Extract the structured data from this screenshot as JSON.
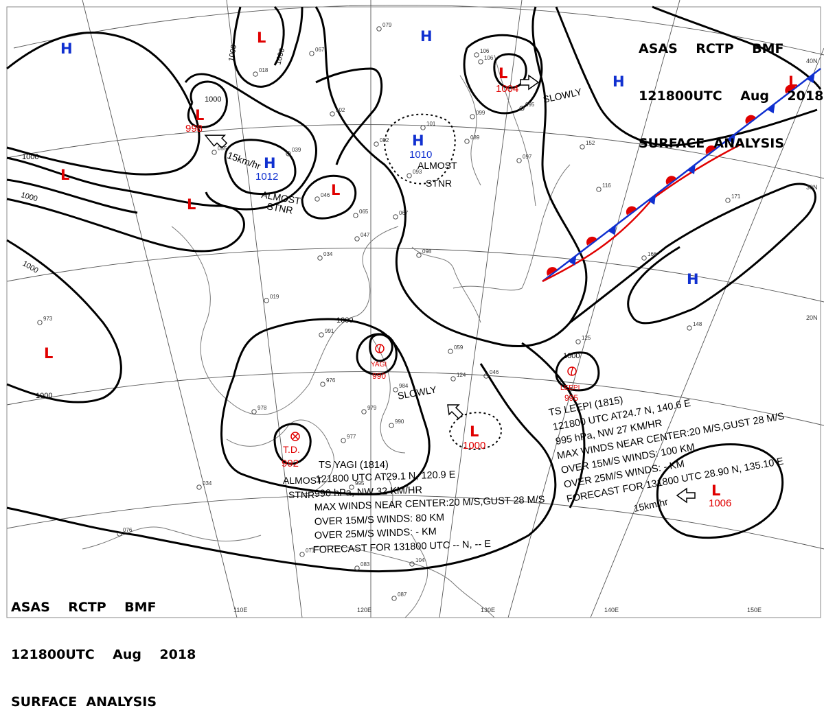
{
  "header": {
    "line1": "ASAS    RCTP    BMF",
    "line2": "121800UTC    Aug    2018",
    "line3": "SURFACE  ANALYSIS"
  },
  "colors": {
    "high": "#1030d0",
    "low": "#e00000",
    "isobar": "#000000",
    "coast": "#777777"
  },
  "longitude_labels": [
    "110E",
    "120E",
    "130E",
    "140E",
    "150E"
  ],
  "latitude_labels": [
    "40N",
    "30N",
    "20N"
  ],
  "isobar_labels": [
    "1000",
    "1000",
    "1000",
    "1000",
    "1000",
    "1000",
    "1000",
    "1000",
    "1000"
  ],
  "pressure_systems": [
    {
      "type": "L",
      "value": ""
    },
    {
      "type": "H",
      "value": ""
    },
    {
      "type": "L",
      "value": "998"
    },
    {
      "type": "H",
      "value": "1012"
    },
    {
      "type": "L",
      "value": ""
    },
    {
      "type": "L",
      "value": ""
    },
    {
      "type": "L",
      "value": ""
    },
    {
      "type": "H",
      "value": ""
    },
    {
      "type": "H",
      "value": "1010"
    },
    {
      "type": "L",
      "value": "1004"
    },
    {
      "type": "H",
      "value": ""
    },
    {
      "type": "L",
      "value": ""
    },
    {
      "type": "H",
      "value": ""
    },
    {
      "type": "L",
      "value": ""
    },
    {
      "type": "L",
      "value": "1000"
    },
    {
      "type": "L",
      "value": "1006"
    }
  ],
  "movement_labels": {
    "slowly_north": "SLOWLY",
    "speed_west": "15km/hr",
    "almost_stnr_west": [
      "ALMOST",
      "STNR"
    ],
    "almost_stnr_center": [
      "ALMOST",
      "STNR"
    ],
    "slowly_south": "SLOWLY",
    "almost_stnr_south": [
      "ALMOST",
      "STNR"
    ],
    "speed_east": "15km/hr"
  },
  "storms": [
    {
      "symbol_name": "YAGI",
      "pressure": "990"
    },
    {
      "symbol_name": "LEEPI",
      "pressure": "995"
    },
    {
      "symbol_name": "T.D.",
      "pressure": "992"
    }
  ],
  "ts_yagi": {
    "lines": [
      "TS  YAGI  (1814)",
      "121800 UTC  AT29.1 N, 120.9 E",
      "990 hPa, NW  32 KM/HR",
      "MAX WINDS NEAR CENTER:20 M/S,GUST 28 M/S",
      "OVER 15M/S WINDS: 80 KM",
      "OVER 25M/S WINDS: - KM",
      "FORECAST FOR 131800 UTC -- N, -- E"
    ]
  },
  "ts_leepi": {
    "lines": [
      "TS  LEEPI  (1815)",
      "121800 UTC  AT24.7 N, 140.6 E",
      "995 hPa, NW  27 KM/HR",
      "MAX WINDS NEAR CENTER:20 M/S,GUST 28 M/S",
      "OVER 15M/S WINDS: 100 KM",
      "OVER 25M/S WINDS: - KM",
      "FORECAST FOR 131800 UTC 28.90 N, 135.10 E"
    ]
  },
  "station_obs": [
    "079",
    "067",
    "018",
    "102",
    "082",
    "101",
    "106",
    "099",
    "095",
    "089",
    "097",
    "055",
    "039",
    "046",
    "065",
    "067",
    "047",
    "034",
    "019",
    "973",
    "991",
    "976",
    "978",
    "984",
    "979",
    "990",
    "977",
    "995",
    "034",
    "076",
    "071",
    "083",
    "104",
    "087",
    "124",
    "059",
    "046",
    "152",
    "116",
    "171",
    "166",
    "148",
    "125",
    "106",
    "098",
    "093"
  ]
}
